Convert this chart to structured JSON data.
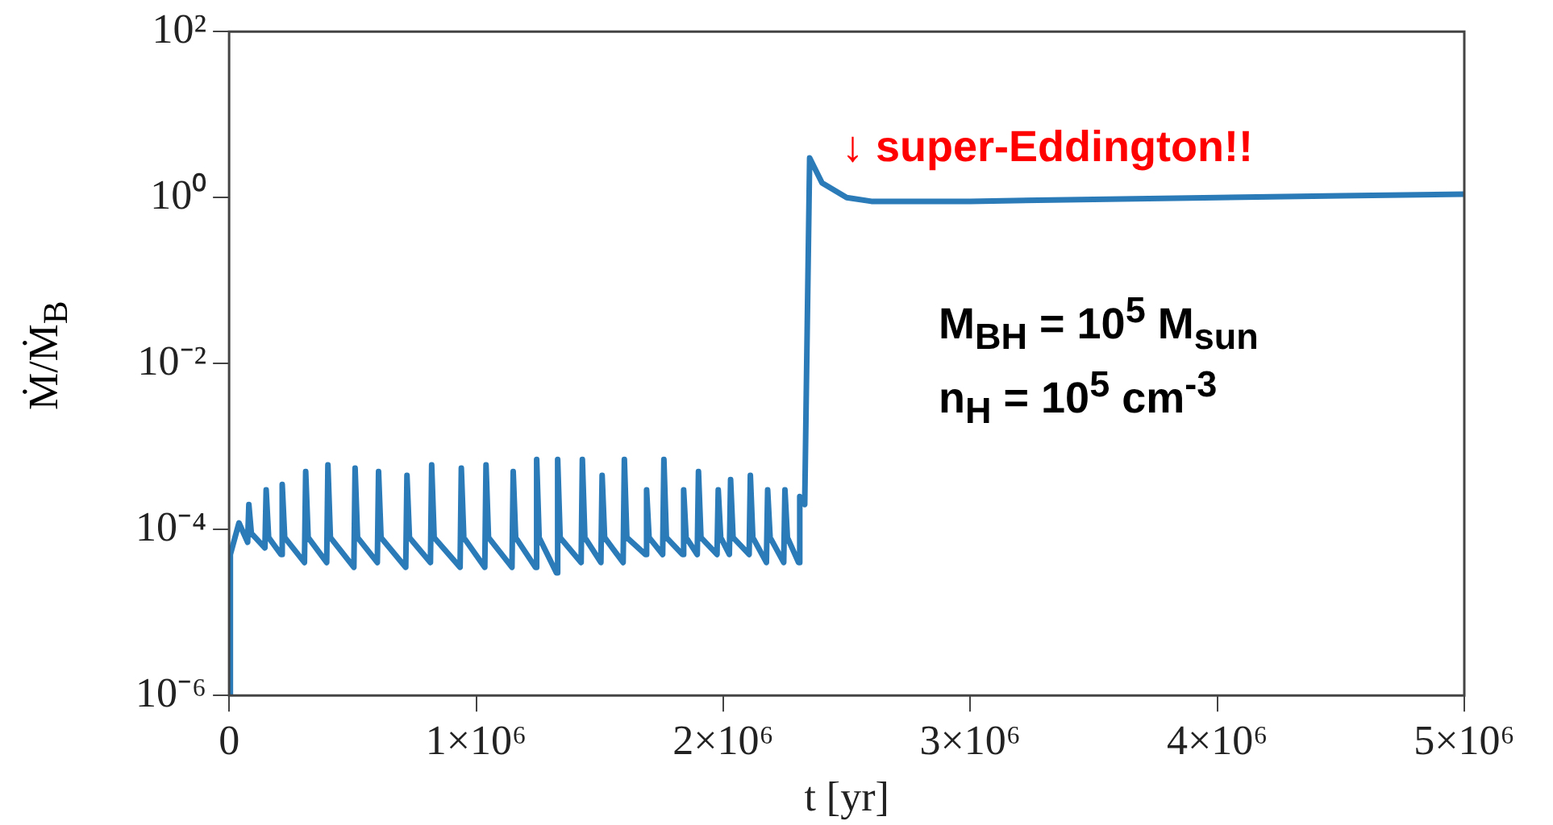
{
  "chart_data": {
    "type": "line",
    "xlabel": "t [yr]",
    "ylabel": "Ṁ/Ṁ$_{B}$",
    "log": "y",
    "grid": false,
    "legend": false,
    "marker": "none",
    "line_style": "solid",
    "xlim": [
      0,
      5000000
    ],
    "xticks": [
      0,
      {
        "value": 1000000,
        "label": "1×10⁶"
      },
      {
        "value": 2000000,
        "label": "2×10⁶"
      },
      {
        "value": 3000000,
        "label": "3×10⁶"
      },
      {
        "value": 4000000,
        "label": "4×10⁶"
      },
      {
        "value": 5000000,
        "label": "5×10⁶"
      }
    ],
    "ylim": [
      1e-06,
      100
    ],
    "yticks": [
      {
        "value": 1e-06,
        "label": "10⁻⁶"
      },
      {
        "value": 0.0001,
        "label": "10⁻⁴"
      },
      {
        "value": 0.01,
        "label": "10⁻²"
      },
      {
        "value": 1,
        "label": "10⁰"
      },
      {
        "value": 100,
        "label": "10²"
      }
    ],
    "annotations": [
      "↓ super-Eddington!!",
      "M$_{BH}$ = 10$^{5}$ M$_{sun}$",
      "n$_{H}$ = 10$^{5}$ cm$^{-3}$"
    ],
    "series": [
      {
        "color": "#2b7bb9",
        "x": [
          0,
          5000,
          40000,
          75000,
          80000,
          90000,
          145000,
          150000,
          160000,
          210000,
          215000,
          225000,
          305000,
          310000,
          320000,
          395000,
          400000,
          410000,
          505000,
          510000,
          520000,
          600000,
          605000,
          615000,
          715000,
          720000,
          730000,
          815000,
          820000,
          830000,
          935000,
          940000,
          950000,
          1035000,
          1040000,
          1050000,
          1145000,
          1150000,
          1160000,
          1240000,
          1245000,
          1255000,
          1325000,
          1330000,
          1340000,
          1425000,
          1430000,
          1440000,
          1505000,
          1510000,
          1520000,
          1595000,
          1600000,
          1610000,
          1685000,
          1690000,
          1700000,
          1755000,
          1760000,
          1770000,
          1835000,
          1840000,
          1850000,
          1895000,
          1900000,
          1910000,
          1975000,
          1980000,
          1990000,
          2025000,
          2030000,
          2040000,
          2105000,
          2110000,
          2120000,
          2175000,
          2180000,
          2190000,
          2245000,
          2250000,
          2260000,
          2305000,
          2310000,
          2330000,
          2350000,
          2400000,
          2500000,
          2600000,
          3000000,
          3500000,
          4000000,
          4500000,
          5000000
        ],
        "values": [
          1e-06,
          5e-05,
          0.00012,
          7e-05,
          0.0002,
          9e-05,
          6e-05,
          0.0003,
          8e-05,
          5e-05,
          0.00035,
          8e-05,
          4e-05,
          0.0005,
          8e-05,
          4e-05,
          0.0006,
          8e-05,
          3.5e-05,
          0.00055,
          8e-05,
          4e-05,
          0.0005,
          8e-05,
          3.5e-05,
          0.00045,
          8e-05,
          4e-05,
          0.0006,
          8e-05,
          3.5e-05,
          0.00055,
          8e-05,
          3.5e-05,
          0.0006,
          8e-05,
          3.5e-05,
          0.0005,
          8e-05,
          3.5e-05,
          0.0007,
          8e-05,
          3e-05,
          0.0007,
          8e-05,
          4e-05,
          0.0007,
          8e-05,
          4e-05,
          0.00045,
          8e-05,
          4e-05,
          0.0007,
          8e-05,
          5e-05,
          0.0003,
          8e-05,
          5e-05,
          0.0007,
          8e-05,
          5e-05,
          0.0003,
          8e-05,
          5e-05,
          0.0005,
          8e-05,
          5e-05,
          0.0003,
          8e-05,
          5e-05,
          0.0004,
          8e-05,
          5e-05,
          0.00045,
          8e-05,
          4e-05,
          0.0003,
          8e-05,
          4e-05,
          0.0003,
          8e-05,
          4e-05,
          0.00025,
          0.0002,
          3,
          1.5,
          1,
          0.9,
          0.9,
          0.95,
          1,
          1.05,
          1.1
        ]
      }
    ]
  }
}
